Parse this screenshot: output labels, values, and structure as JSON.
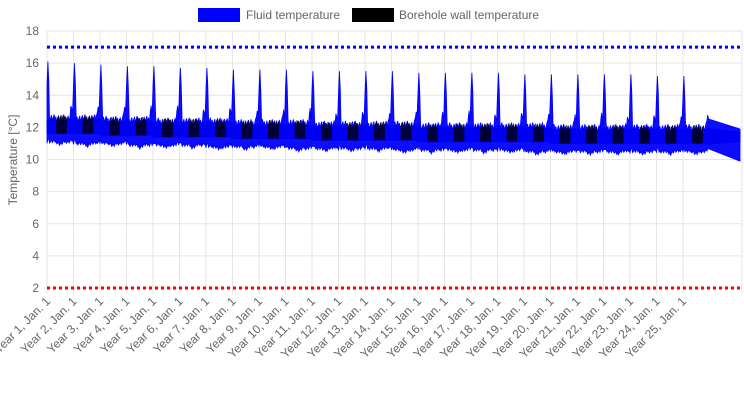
{
  "chart_data": {
    "type": "line",
    "title": "",
    "xlabel": "",
    "ylabel": "Temperature [°C]",
    "ylim": [
      2,
      18
    ],
    "yticks": [
      2,
      4,
      6,
      8,
      10,
      12,
      14,
      16,
      18
    ],
    "grid": true,
    "legend_position": "top",
    "categories": [
      "Year 1, Jan. 1",
      "Year 2, Jan. 1",
      "Year 3, Jan. 1",
      "Year 4, Jan. 1",
      "Year 5, Jan. 1",
      "Year 6, Jan. 1",
      "Year 7, Jan. 1",
      "Year 8, Jan. 1",
      "Year 9, Jan. 1",
      "Year 10, Jan. 1",
      "Year 11, Jan. 1",
      "Year 12, Jan. 1",
      "Year 13, Jan. 1",
      "Year 14, Jan. 1",
      "Year 15, Jan. 1",
      "Year 16, Jan. 1",
      "Year 17, Jan. 1",
      "Year 18, Jan. 1",
      "Year 19, Jan. 1",
      "Year 20, Jan. 1",
      "Year 21, Jan. 1",
      "Year 22, Jan. 1",
      "Year 23, Jan. 1",
      "Year 24, Jan. 1",
      "Year 25, Jan. 1"
    ],
    "series": [
      {
        "name": "Fluid temperature",
        "color": "#0000ff",
        "annual_peak": [
          16.1,
          16.0,
          15.9,
          15.8,
          15.8,
          15.7,
          15.7,
          15.6,
          15.6,
          15.6,
          15.5,
          15.5,
          15.5,
          15.5,
          15.4,
          15.4,
          15.4,
          15.4,
          15.3,
          15.3,
          15.3,
          15.3,
          15.3,
          15.2,
          15.2
        ],
        "annual_min": [
          10.5,
          10.4,
          10.4,
          10.3,
          10.3,
          10.3,
          10.2,
          10.2,
          10.2,
          10.1,
          10.1,
          10.1,
          10.1,
          10.0,
          10.0,
          10.0,
          10.0,
          10.0,
          9.9,
          9.9,
          9.9,
          9.9,
          9.9,
          9.9,
          9.9
        ]
      },
      {
        "name": "Borehole wall temperature",
        "color": "#000000",
        "annual_mean": [
          12.0,
          12.0,
          11.9,
          11.9,
          11.8,
          11.8,
          11.8,
          11.7,
          11.7,
          11.7,
          11.6,
          11.6,
          11.6,
          11.6,
          11.5,
          11.5,
          11.5,
          11.5,
          11.5,
          11.4,
          11.4,
          11.4,
          11.4,
          11.4,
          11.4
        ]
      },
      {
        "name": "",
        "type": "threshold",
        "value": 17,
        "color": "#0000ff"
      },
      {
        "name": "",
        "type": "threshold",
        "value": 2,
        "color": "#ff0000"
      }
    ]
  }
}
